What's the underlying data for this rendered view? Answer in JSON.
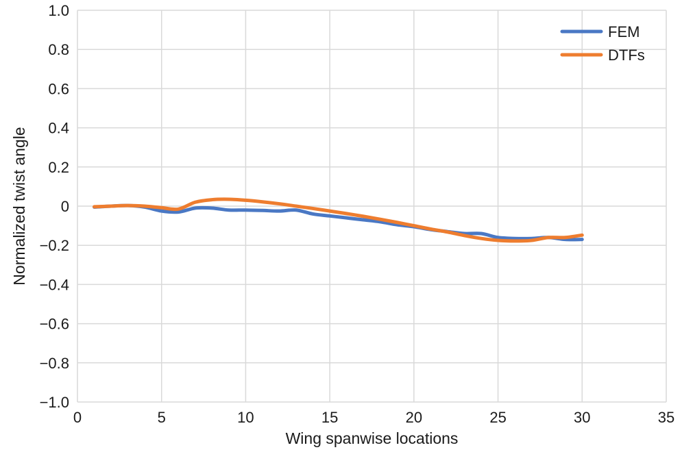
{
  "chart_data": {
    "type": "line",
    "xlabel": "Wing spanwise locations",
    "ylabel": "Normalized twist angle",
    "xlim": [
      0,
      35
    ],
    "ylim": [
      -1.0,
      1.0
    ],
    "xticks": [
      0,
      5,
      10,
      15,
      20,
      25,
      30,
      35
    ],
    "yticks": [
      1.0,
      0.8,
      0.6,
      0.4,
      0.2,
      0,
      -0.2,
      -0.4,
      -0.6,
      -0.8,
      -1.0
    ],
    "xtick_labels": [
      "0",
      "5",
      "10",
      "15",
      "20",
      "25",
      "30",
      "35"
    ],
    "ytick_labels": [
      "1.0",
      "0.8",
      "0.6",
      "0.4",
      "0.2",
      "0",
      "−0.2",
      "−0.4",
      "−0.6",
      "−0.8",
      "−1.0"
    ],
    "grid": true,
    "legend_position": "top-right",
    "x": [
      1,
      2,
      3,
      4,
      5,
      6,
      7,
      8,
      9,
      10,
      11,
      12,
      13,
      14,
      15,
      16,
      17,
      18,
      19,
      20,
      21,
      22,
      23,
      24,
      25,
      26,
      27,
      28,
      29,
      30
    ],
    "series": [
      {
        "name": "FEM",
        "color": "#4a78c4",
        "values": [
          -0.005,
          0.0,
          0.003,
          -0.005,
          -0.025,
          -0.03,
          -0.01,
          -0.01,
          -0.02,
          -0.02,
          -0.022,
          -0.025,
          -0.02,
          -0.04,
          -0.05,
          -0.06,
          -0.07,
          -0.08,
          -0.095,
          -0.105,
          -0.12,
          -0.13,
          -0.14,
          -0.14,
          -0.16,
          -0.165,
          -0.165,
          -0.16,
          -0.17,
          -0.17
        ]
      },
      {
        "name": "DTFs",
        "color": "#ee7d2f",
        "values": [
          -0.003,
          0.0,
          0.003,
          0.0,
          -0.008,
          -0.015,
          0.02,
          0.033,
          0.035,
          0.03,
          0.022,
          0.012,
          0.0,
          -0.012,
          -0.025,
          -0.038,
          -0.052,
          -0.067,
          -0.083,
          -0.1,
          -0.117,
          -0.132,
          -0.15,
          -0.165,
          -0.175,
          -0.178,
          -0.175,
          -0.16,
          -0.16,
          -0.148
        ]
      }
    ]
  }
}
